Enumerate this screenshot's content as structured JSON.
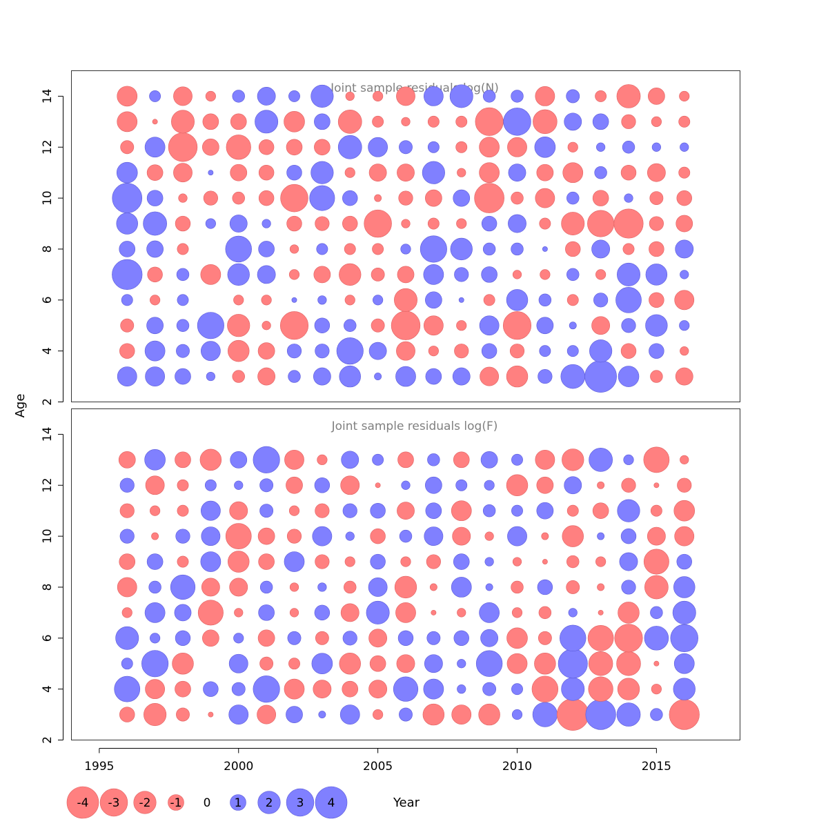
{
  "chart_data": {
    "type": "scatter",
    "subtype": "bubble",
    "xlabel": "Year",
    "ylabel": "Age",
    "xlim": [
      1994,
      2018
    ],
    "ylim": [
      2,
      15
    ],
    "x_ticks": [
      1995,
      2000,
      2005,
      2010,
      2015
    ],
    "y_ticks": [
      2,
      4,
      6,
      8,
      10,
      12,
      14
    ],
    "colors": {
      "negative": "#ff8080",
      "positive": "#8080ff",
      "negative_edge": "#e06060",
      "positive_edge": "#5a5ad8"
    },
    "legend": {
      "placement": "bottom-left",
      "values": [
        -4,
        -3,
        -2,
        -1,
        0,
        1,
        2,
        3,
        4
      ],
      "labels": [
        "-4",
        "-3",
        "-2",
        "-1",
        "0",
        "1",
        "2",
        "3",
        "4"
      ]
    },
    "years": [
      1996,
      1997,
      1998,
      1999,
      2000,
      2001,
      2002,
      2003,
      2004,
      2005,
      2006,
      2007,
      2008,
      2009,
      2010,
      2011,
      2012,
      2013,
      2014,
      2015,
      2016
    ],
    "panels": [
      {
        "title": "Joint sample residuals log(N)",
        "ages": [
          3,
          4,
          5,
          6,
          7,
          8,
          9,
          10,
          11,
          12,
          13,
          14
        ],
        "residuals": [
          [
            1.5,
            1.5,
            1.0,
            0.3,
            -0.6,
            -1.2,
            0.6,
            1.2,
            1.8,
            0.2,
            1.6,
            1.0,
            1.2,
            -1.4,
            -1.8,
            0.8,
            2.3,
            4.0,
            1.7,
            -0.6,
            -1.2
          ],
          [
            -0.9,
            1.6,
            0.7,
            1.5,
            -1.8,
            -1.1,
            0.8,
            0.8,
            2.8,
            1.2,
            -1.4,
            -0.4,
            -0.8,
            0.9,
            -0.8,
            0.5,
            0.5,
            2.0,
            -0.9,
            0.9,
            -0.3
          ],
          [
            -0.7,
            1.1,
            0.6,
            2.8,
            -2.0,
            -0.3,
            -3.1,
            0.9,
            0.6,
            -0.7,
            -3.3,
            -1.5,
            -0.4,
            1.5,
            -3.1,
            1.1,
            0.2,
            -1.3,
            0.8,
            1.9,
            0.4
          ],
          [
            0.5,
            -0.4,
            0.5,
            0.0,
            -0.4,
            -0.4,
            0.1,
            0.3,
            -0.4,
            0.4,
            -2.1,
            1.1,
            0.1,
            -0.5,
            1.8,
            0.6,
            -0.5,
            0.8,
            2.6,
            -0.9,
            -1.5
          ],
          [
            3.6,
            -0.9,
            0.6,
            -1.6,
            1.9,
            1.3,
            -0.4,
            -1.1,
            -1.9,
            -0.7,
            -1.1,
            1.6,
            0.8,
            1.0,
            -0.3,
            -0.4,
            0.6,
            -0.4,
            2.1,
            1.8,
            0.3
          ],
          [
            1.0,
            1.1,
            -0.5,
            0.0,
            2.7,
            1.0,
            -0.3,
            0.5,
            -0.5,
            -0.5,
            0.4,
            2.8,
            1.9,
            0.6,
            0.6,
            0.1,
            -0.9,
            1.3,
            -0.5,
            -0.9,
            1.3
          ],
          [
            1.8,
            2.2,
            -0.9,
            0.4,
            1.2,
            0.3,
            -0.9,
            -0.8,
            -0.9,
            -3.0,
            -0.3,
            -0.5,
            -0.4,
            0.9,
            1.3,
            -0.5,
            -2.1,
            -2.8,
            -3.4,
            -0.8,
            -1.1
          ],
          [
            3.5,
            1.0,
            -0.3,
            -0.8,
            -0.6,
            -0.9,
            -3.0,
            2.5,
            0.9,
            -0.2,
            -0.8,
            -1.1,
            1.1,
            -3.5,
            -0.6,
            -1.5,
            0.6,
            -1.0,
            0.3,
            -0.7,
            -0.9
          ],
          [
            1.7,
            -1.0,
            -1.4,
            0.1,
            -1.1,
            -0.9,
            0.9,
            2.0,
            -0.4,
            -1.2,
            -1.2,
            2.0,
            -0.3,
            -1.6,
            1.2,
            -1.1,
            -1.6,
            0.6,
            -0.9,
            -1.3,
            -0.5
          ],
          [
            -0.7,
            1.6,
            -3.3,
            -1.1,
            -2.4,
            -0.9,
            -1.0,
            -1.0,
            2.2,
            1.5,
            0.7,
            0.5,
            -0.5,
            -1.6,
            -1.5,
            1.7,
            -0.4,
            0.3,
            0.6,
            0.3,
            0.3
          ],
          [
            -1.6,
            -0.1,
            -2.1,
            -1.0,
            -1.0,
            2.1,
            -1.7,
            1.0,
            -2.2,
            -0.5,
            -0.3,
            -0.5,
            -0.5,
            -3.1,
            3.0,
            -2.3,
            1.2,
            1.0,
            -0.8,
            -0.4,
            -0.5
          ],
          [
            -1.6,
            0.5,
            -1.4,
            -0.4,
            0.6,
            1.3,
            0.5,
            2.0,
            -0.3,
            -0.4,
            -1.4,
            1.5,
            2.1,
            0.6,
            0.6,
            -1.5,
            0.7,
            -0.5,
            -2.2,
            -1.1,
            -0.4
          ]
        ]
      },
      {
        "title": "Joint sample residuals log(F)",
        "ages": [
          3,
          4,
          5,
          6,
          7,
          8,
          9,
          10,
          11,
          12,
          13
        ],
        "residuals": [
          [
            -0.9,
            -2.0,
            -0.7,
            -0.1,
            1.5,
            -1.4,
            1.1,
            0.2,
            1.5,
            -0.4,
            0.7,
            -1.8,
            -1.5,
            -1.8,
            0.4,
            2.4,
            -4.0,
            3.6,
            2.2,
            0.6,
            -3.6
          ],
          [
            2.6,
            -1.5,
            -1.0,
            0.9,
            0.7,
            2.8,
            -1.6,
            -1.3,
            -1.0,
            -1.3,
            2.4,
            1.6,
            0.3,
            0.7,
            0.5,
            -2.7,
            2.1,
            -2.4,
            -1.9,
            -0.4,
            1.9
          ],
          [
            0.5,
            2.8,
            -1.8,
            0.0,
            1.4,
            -0.7,
            -0.5,
            1.7,
            -1.8,
            -1.0,
            -1.3,
            1.3,
            0.3,
            2.7,
            -1.6,
            -1.8,
            3.4,
            -2.3,
            -2.3,
            -0.1,
            1.6
          ],
          [
            2.1,
            0.4,
            0.9,
            -1.1,
            0.4,
            -1.1,
            0.7,
            -0.7,
            0.8,
            -1.3,
            0.9,
            0.7,
            0.9,
            1.2,
            -1.7,
            -0.7,
            2.7,
            -2.6,
            -3.1,
            2.3,
            3.0
          ],
          [
            -0.4,
            1.6,
            1.1,
            -2.5,
            -0.3,
            1.0,
            -0.3,
            0.9,
            -1.3,
            2.1,
            -1.6,
            -0.1,
            -0.3,
            1.6,
            -0.4,
            -0.6,
            0.3,
            -0.1,
            -1.8,
            0.6,
            2.1
          ],
          [
            -1.5,
            0.6,
            2.4,
            -1.3,
            -1.3,
            0.6,
            -0.3,
            0.3,
            -0.6,
            1.4,
            -1.9,
            -0.2,
            1.6,
            0.2,
            -0.6,
            0.9,
            -0.7,
            -0.2,
            0.8,
            -2.2,
            1.8
          ],
          [
            -1.0,
            1.0,
            -0.5,
            1.6,
            -1.8,
            -1.0,
            1.6,
            -0.8,
            -0.4,
            0.9,
            -0.4,
            -0.8,
            1.0,
            0.3,
            -0.3,
            -0.1,
            -0.6,
            -0.4,
            1.3,
            -2.5,
            0.9
          ],
          [
            0.8,
            -0.2,
            0.8,
            1.4,
            -2.6,
            -1.1,
            -0.8,
            1.5,
            0.3,
            -0.9,
            0.6,
            1.4,
            -1.3,
            -0.3,
            1.5,
            -0.2,
            -1.8,
            0.2,
            0.9,
            -1.3,
            -1.5
          ],
          [
            -0.8,
            -0.4,
            -0.5,
            1.5,
            -1.3,
            0.7,
            -0.4,
            -0.8,
            0.8,
            0.9,
            -1.2,
            1.0,
            -1.6,
            0.6,
            0.5,
            1.1,
            -0.5,
            -1.0,
            2.0,
            -0.5,
            -1.7
          ],
          [
            0.8,
            -1.4,
            -0.5,
            0.5,
            0.3,
            0.7,
            -1.1,
            0.9,
            -1.4,
            -0.1,
            0.3,
            1.1,
            0.5,
            0.4,
            -1.8,
            -1.1,
            1.2,
            -0.2,
            -0.8,
            -0.1,
            -0.8
          ],
          [
            -1.1,
            1.7,
            -1.0,
            -1.8,
            1.1,
            2.8,
            -1.5,
            -0.4,
            1.2,
            0.5,
            -1.0,
            0.6,
            -1.0,
            1.1,
            0.5,
            -1.5,
            -1.9,
            2.2,
            0.4,
            -2.6,
            -0.3
          ]
        ]
      }
    ]
  }
}
